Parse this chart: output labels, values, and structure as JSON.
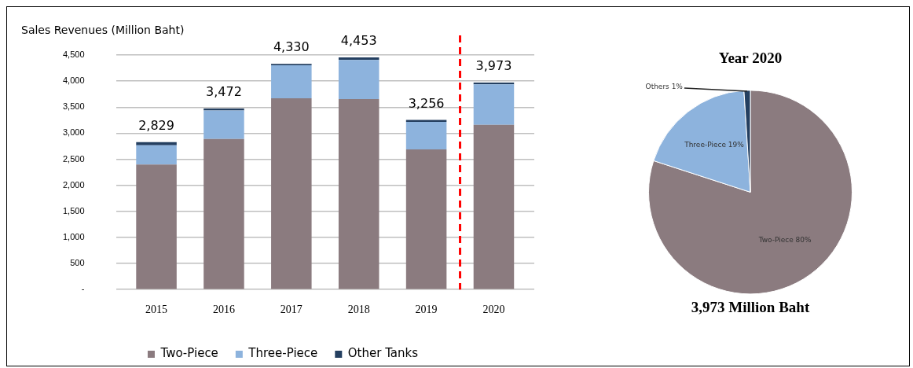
{
  "chart_data": [
    {
      "type": "bar",
      "stacked": true,
      "ylabel": "Sales Revenues (Million Baht)",
      "x": [
        2015,
        2016,
        2017,
        2018,
        2019,
        2020
      ],
      "xlim": [
        2014.4,
        2020.6
      ],
      "xticks": [
        2015,
        2016,
        2017,
        2018,
        2019,
        2020
      ],
      "series": [
        {
          "name": "Two-Piece",
          "color": "#8b7b7f",
          "values": [
            2400,
            2890,
            3670,
            3655,
            2690,
            3160
          ]
        },
        {
          "name": "Three-Piece",
          "color": "#8db3dd",
          "values": [
            370,
            547,
            632,
            751,
            529,
            776
          ]
        },
        {
          "name": "Other Tanks",
          "color": "#243f60",
          "values": [
            59,
            35,
            28,
            47,
            37,
            37
          ]
        }
      ],
      "ref_lines": [
        {
          "axis": "x",
          "value": 2019.5,
          "color": "#ff0000",
          "line_style": "dashed"
        }
      ],
      "totals": [
        "2,829",
        "3,472",
        "4,330",
        "4,453",
        "3,256",
        "3,973"
      ],
      "ylim": [
        0,
        4500
      ],
      "yticks": [
        {
          "value": 0,
          "label": "-"
        },
        500,
        {
          "value": 1000,
          "label": "1,000"
        },
        {
          "value": 1500,
          "label": "1,500"
        },
        {
          "value": 2000,
          "label": "2,000"
        },
        {
          "value": 2500,
          "label": "2,500"
        },
        {
          "value": 3000,
          "label": "3,000"
        },
        {
          "value": 3500,
          "label": "3,500"
        },
        {
          "value": 4000,
          "label": "4,000"
        },
        {
          "value": 4500,
          "label": "4,500"
        }
      ],
      "grid": "y",
      "legend": "bottom"
    },
    {
      "type": "pie",
      "title": "Year 2020",
      "categories": [
        "Two-Piece",
        "Three-Piece",
        "Others"
      ],
      "values": [
        80,
        19,
        1
      ],
      "colors": [
        "#8b7b7f",
        "#8db3dd",
        "#243f60"
      ],
      "value_labels": [
        "80%",
        "19%",
        "1%"
      ],
      "legend": false,
      "annotations": [
        "3,973 Million Baht"
      ]
    }
  ]
}
